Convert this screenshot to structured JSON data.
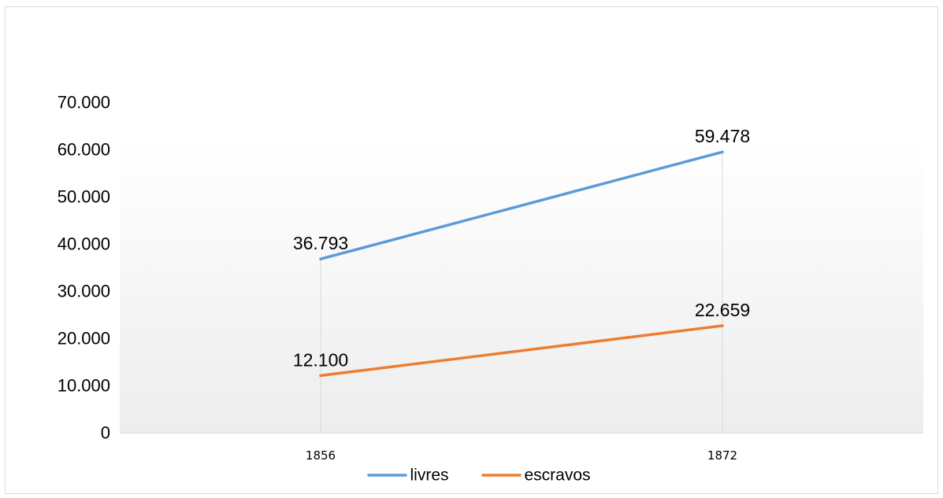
{
  "chart_data": {
    "type": "line",
    "categories": [
      "1856",
      "1872"
    ],
    "series": [
      {
        "name": "livres",
        "values": [
          36793,
          59478
        ],
        "labels": [
          "36.793",
          "59.478"
        ],
        "color": "#5b9bd5"
      },
      {
        "name": "escravos",
        "values": [
          12100,
          22659
        ],
        "labels": [
          "12.100",
          "22.659"
        ],
        "color": "#ed7d31"
      }
    ],
    "title": "",
    "xlabel": "",
    "ylabel": "",
    "ylim": [
      0,
      70000
    ],
    "yticks": [
      0,
      10000,
      20000,
      30000,
      40000,
      50000,
      60000,
      70000
    ],
    "ytick_labels": [
      "0",
      "10.000",
      "20.000",
      "30.000",
      "40.000",
      "50.000",
      "60.000",
      "70.000"
    ],
    "grid": false,
    "legend": "bottom"
  }
}
